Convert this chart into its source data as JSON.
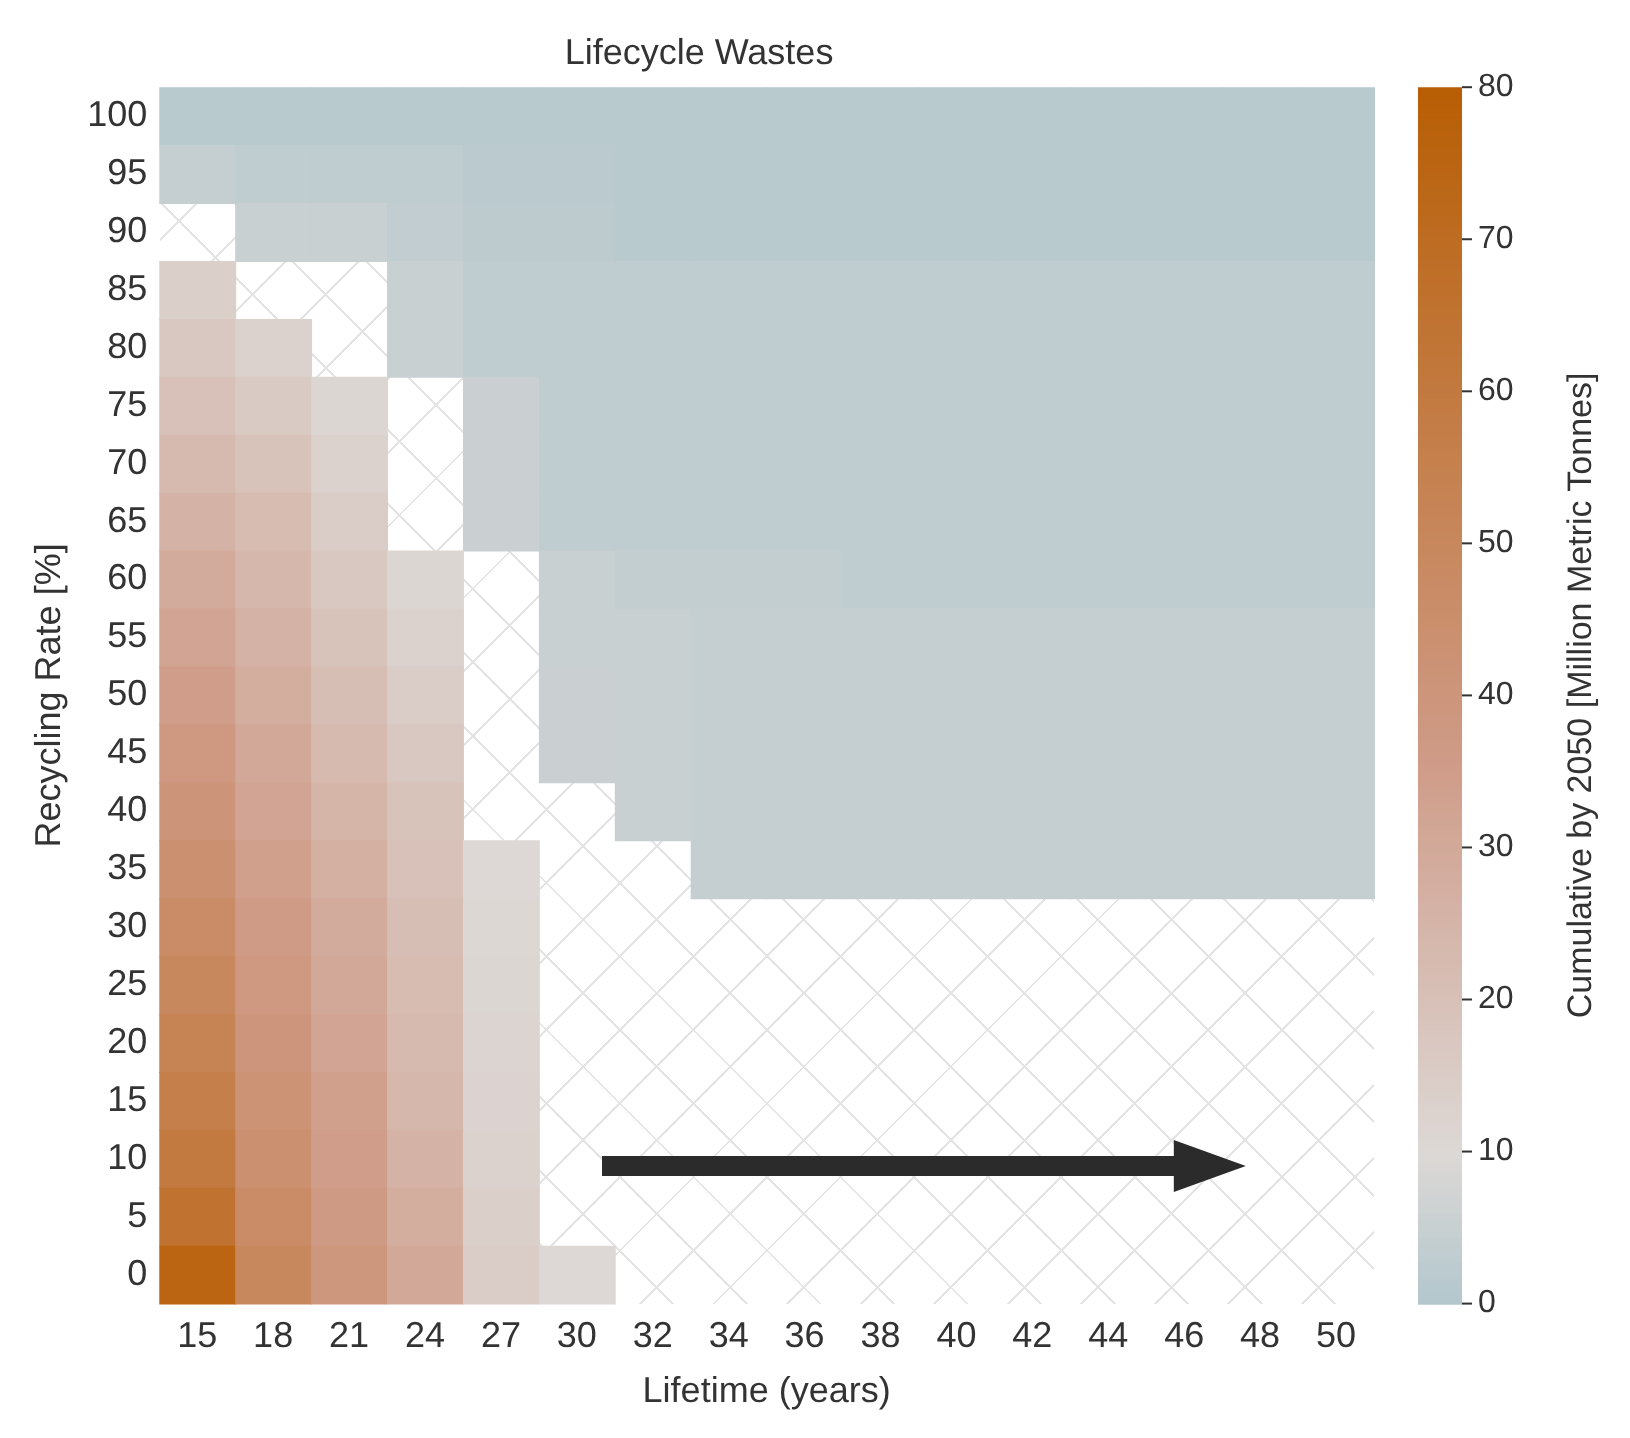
{
  "chart_data": {
    "type": "heatmap",
    "title": "Lifecycle Wastes",
    "xlabel": "Lifetime (years)",
    "ylabel": "Recycling Rate [%]",
    "clabel": "Cumulative by 2050 [Million Metric Tonnes]",
    "categories": [
      "15",
      "18",
      "21",
      "24",
      "27",
      "30",
      "32",
      "34",
      "36",
      "38",
      "40",
      "42",
      "44",
      "46",
      "48",
      "50"
    ],
    "y_categories": [
      "100",
      "95",
      "90",
      "85",
      "80",
      "75",
      "70",
      "65",
      "60",
      "55",
      "50",
      "45",
      "40",
      "35",
      "30",
      "25",
      "20",
      "15",
      "10",
      "5",
      "0"
    ],
    "cells": [
      [
        1.5,
        1.5,
        1.5,
        1.5,
        1.5,
        1.5,
        1.5,
        1.5,
        1.5,
        1.5,
        1.5,
        1.5,
        1.5,
        1.5,
        1.5,
        1.5
      ],
      [
        4.5,
        3,
        3,
        3,
        2,
        2,
        1.5,
        1.5,
        1.5,
        1.5,
        1.5,
        1.5,
        1.5,
        1.5,
        1.5,
        1.5
      ],
      [
        null,
        5,
        5,
        3.5,
        2.5,
        2.5,
        1.5,
        1.5,
        1.5,
        1.5,
        1.5,
        1.5,
        1.5,
        1.5,
        1.5,
        1.5
      ],
      [
        14,
        null,
        null,
        5,
        3,
        3,
        3,
        3,
        3,
        3,
        3,
        3,
        3,
        3,
        3,
        3
      ],
      [
        17,
        13,
        null,
        5,
        3,
        3,
        3,
        3,
        3,
        3,
        3,
        3,
        3,
        3,
        3,
        3
      ],
      [
        20,
        16,
        11,
        null,
        5.5,
        3,
        3,
        3,
        3,
        3,
        3,
        3,
        3,
        3,
        3,
        3
      ],
      [
        23,
        19,
        13,
        null,
        5.5,
        3,
        3,
        3,
        3,
        3,
        3,
        3,
        3,
        3,
        3,
        3
      ],
      [
        26,
        22,
        15,
        null,
        5.5,
        3,
        3,
        3,
        3,
        3,
        3,
        3,
        3,
        3,
        3,
        3
      ],
      [
        29,
        24,
        17,
        11,
        null,
        5,
        4,
        4,
        4,
        3,
        3,
        3,
        3,
        3,
        3,
        3
      ],
      [
        32,
        26,
        19,
        13,
        null,
        5,
        5,
        4.5,
        4.5,
        4.5,
        4.5,
        4.5,
        4.5,
        4.5,
        4.5,
        4.5
      ],
      [
        35,
        28,
        21,
        15,
        null,
        5.5,
        5,
        4.5,
        4.5,
        4.5,
        4.5,
        4.5,
        4.5,
        4.5,
        4.5,
        4.5
      ],
      [
        38,
        30,
        23,
        17,
        null,
        5.5,
        5,
        4.5,
        4.5,
        4.5,
        4.5,
        4.5,
        4.5,
        4.5,
        4.5,
        4.5
      ],
      [
        41,
        32,
        25,
        19,
        null,
        null,
        5,
        4.5,
        4.5,
        4.5,
        4.5,
        4.5,
        4.5,
        4.5,
        4.5,
        4.5
      ],
      [
        44,
        34,
        27,
        20,
        10,
        null,
        null,
        4.5,
        4.5,
        4.5,
        4.5,
        4.5,
        4.5,
        4.5,
        4.5,
        4.5
      ],
      [
        47,
        36,
        29,
        21,
        10.5,
        null,
        null,
        null,
        null,
        null,
        null,
        null,
        null,
        null,
        null,
        null
      ],
      [
        50,
        38,
        30,
        22,
        11,
        null,
        null,
        null,
        null,
        null,
        null,
        null,
        null,
        null,
        null,
        null
      ],
      [
        53,
        40,
        32,
        23,
        11.5,
        null,
        null,
        null,
        null,
        null,
        null,
        null,
        null,
        null,
        null,
        null
      ],
      [
        56,
        42,
        34,
        24,
        12,
        null,
        null,
        null,
        null,
        null,
        null,
        null,
        null,
        null,
        null,
        null
      ],
      [
        60,
        44,
        35,
        26,
        13,
        null,
        null,
        null,
        null,
        null,
        null,
        null,
        null,
        null,
        null,
        null
      ],
      [
        65,
        47,
        37,
        28,
        14,
        null,
        null,
        null,
        null,
        null,
        null,
        null,
        null,
        null,
        null,
        null
      ],
      [
        75,
        50,
        39,
        30,
        15,
        10,
        null,
        null,
        null,
        null,
        null,
        null,
        null,
        null,
        null,
        null
      ]
    ],
    "clim": [
      0,
      80
    ],
    "cticks": [
      0,
      10,
      20,
      30,
      40,
      50,
      60,
      70,
      80
    ]
  }
}
